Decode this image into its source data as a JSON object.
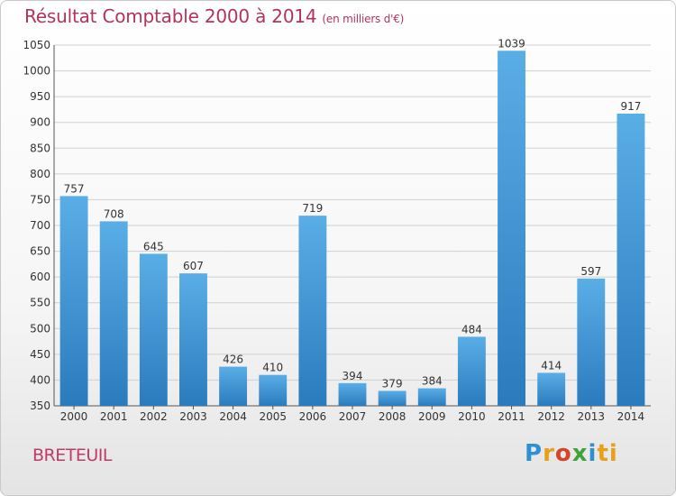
{
  "chart_data": {
    "type": "bar",
    "title": "Résultat Comptable 2000 à 2014",
    "subtitle": "(en milliers d'€)",
    "categories": [
      "2000",
      "2001",
      "2002",
      "2003",
      "2004",
      "2005",
      "2006",
      "2007",
      "2008",
      "2009",
      "2010",
      "2011",
      "2012",
      "2013",
      "2014"
    ],
    "values": [
      757,
      708,
      645,
      607,
      426,
      410,
      719,
      394,
      379,
      384,
      484,
      1039,
      414,
      597,
      917
    ],
    "ylim": [
      350,
      1050
    ],
    "yticks": [
      350,
      400,
      450,
      500,
      550,
      600,
      650,
      700,
      750,
      800,
      850,
      900,
      950,
      1000,
      1050
    ],
    "grid": true,
    "legend": "none",
    "colors": {
      "bar_top": "#5aaee6",
      "bar_bottom": "#2a7bbd",
      "grid": "#d0d0d0",
      "title": "#b2345a"
    }
  },
  "footer": {
    "commune": "BRETEUIL",
    "logo_letters": [
      "P",
      "r",
      "o",
      "x",
      "i",
      "ti"
    ]
  }
}
